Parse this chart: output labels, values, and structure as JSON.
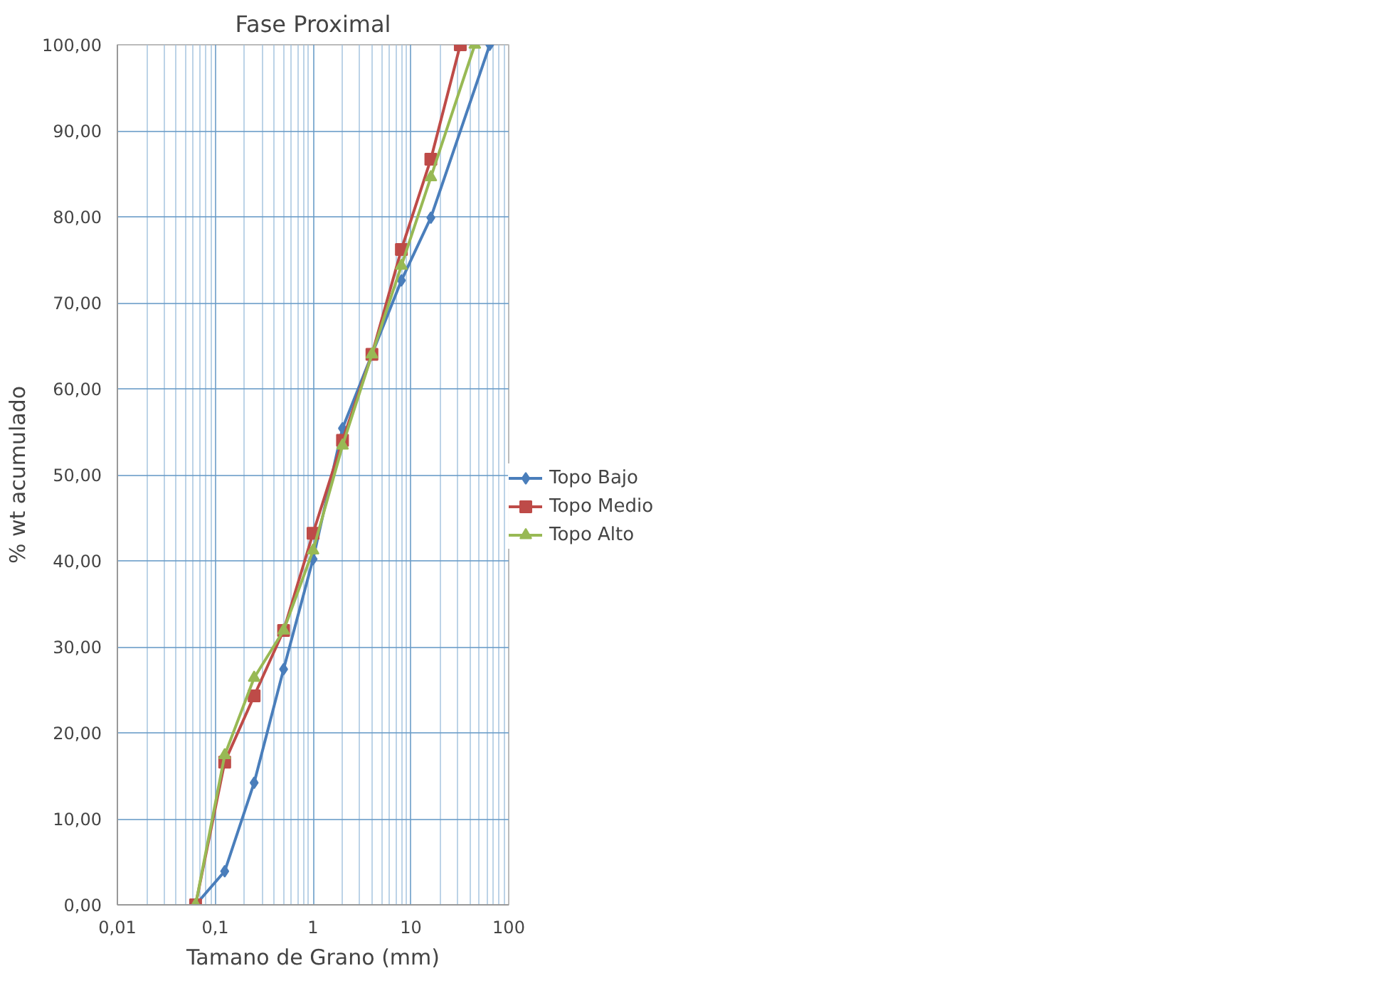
{
  "chart_data": {
    "type": "line",
    "title": "Fase Proximal",
    "xlabel": "Tamano de Grano (mm)",
    "ylabel": "% wt acumulado",
    "log": "x",
    "grid": true,
    "legend": "right",
    "line_style": "solid",
    "xlim": [
      0.01,
      100
    ],
    "xticks": [
      {
        "value": 0.01,
        "label": "0,01"
      },
      {
        "value": 0.02,
        "label": null
      },
      {
        "value": 0.03,
        "label": null
      },
      {
        "value": 0.04,
        "label": null
      },
      {
        "value": 0.05,
        "label": null
      },
      {
        "value": 0.06,
        "label": null
      },
      {
        "value": 0.07,
        "label": null
      },
      {
        "value": 0.08,
        "label": null
      },
      {
        "value": 0.09,
        "label": null
      },
      {
        "value": 0.1,
        "label": "0,1"
      },
      {
        "value": 0.2,
        "label": null
      },
      {
        "value": 0.3,
        "label": null
      },
      {
        "value": 0.4,
        "label": null
      },
      {
        "value": 0.5,
        "label": null
      },
      {
        "value": 0.6,
        "label": null
      },
      {
        "value": 0.7,
        "label": null
      },
      {
        "value": 0.8,
        "label": null
      },
      {
        "value": 0.9,
        "label": null
      },
      1,
      {
        "value": 2,
        "label": null
      },
      {
        "value": 3,
        "label": null
      },
      {
        "value": 4,
        "label": null
      },
      {
        "value": 5,
        "label": null
      },
      {
        "value": 6,
        "label": null
      },
      {
        "value": 7,
        "label": null
      },
      {
        "value": 8,
        "label": null
      },
      {
        "value": 9,
        "label": null
      },
      10,
      {
        "value": 20,
        "label": null
      },
      {
        "value": 30,
        "label": null
      },
      {
        "value": 40,
        "label": null
      },
      {
        "value": 50,
        "label": null
      },
      {
        "value": 60,
        "label": null
      },
      {
        "value": 70,
        "label": null
      },
      {
        "value": 80,
        "label": null
      },
      {
        "value": 90,
        "label": null
      },
      100
    ],
    "ylim": [
      0,
      100
    ],
    "yticks": [
      {
        "value": 0,
        "label": "0,00"
      },
      {
        "value": 10,
        "label": "10,00"
      },
      {
        "value": 20,
        "label": "20,00"
      },
      {
        "value": 30,
        "label": "30,00"
      },
      {
        "value": 40,
        "label": "40,00"
      },
      {
        "value": 50,
        "label": "50,00"
      },
      {
        "value": 60,
        "label": "60,00"
      },
      {
        "value": 70,
        "label": "70,00"
      },
      {
        "value": 80,
        "label": "80,00"
      },
      {
        "value": 90,
        "label": "90,00"
      },
      {
        "value": 100,
        "label": "100,00"
      }
    ],
    "series": [
      {
        "name": "Topo Bajo",
        "color": "#4a7ebb",
        "marker": "diamond",
        "x": [
          0.063,
          0.125,
          0.25,
          0.5,
          1,
          2,
          4,
          8,
          16,
          64
        ],
        "values": [
          0,
          3.9,
          14.2,
          27.4,
          40.2,
          55.4,
          64,
          72.6,
          79.9,
          100
        ]
      },
      {
        "name": "Topo Medio",
        "color": "#be4b48",
        "marker": "square",
        "x": [
          0.063,
          0.125,
          0.25,
          0.5,
          1,
          2,
          4,
          8,
          16,
          32
        ],
        "values": [
          0,
          16.6,
          24.3,
          31.9,
          43.2,
          54,
          64,
          76.2,
          86.7,
          100
        ]
      },
      {
        "name": "Topo Alto",
        "color": "#98b954",
        "marker": "triangle",
        "x": [
          0.063,
          0.125,
          0.25,
          0.5,
          1,
          2,
          4,
          8,
          16,
          45
        ],
        "values": [
          0,
          17.4,
          26.4,
          31.9,
          41.2,
          53.4,
          64,
          74.3,
          84.6,
          100
        ]
      }
    ]
  }
}
